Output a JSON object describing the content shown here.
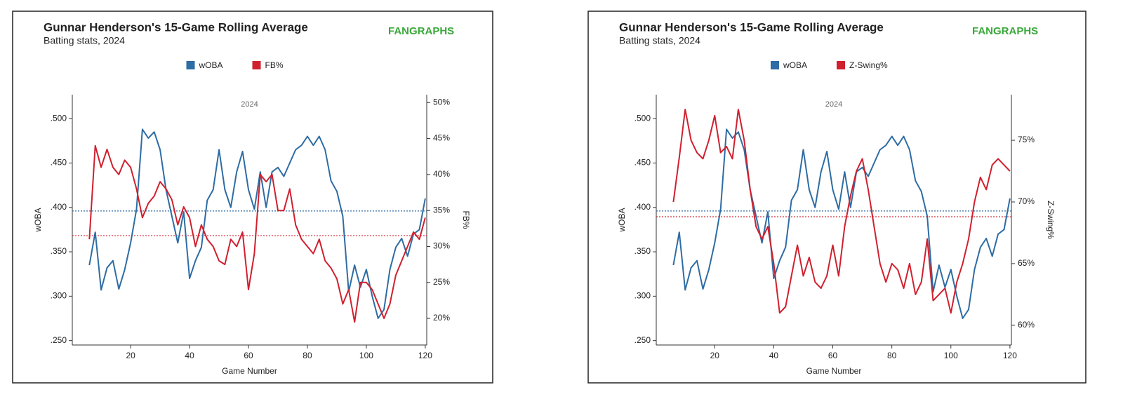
{
  "chart_data": [
    {
      "type": "line",
      "title": "Gunnar Henderson's 15-Game Rolling Average",
      "subtitle": "Batting stats, 2024",
      "logo": "FANGRAPHS",
      "annotation": "2024",
      "xlabel": "Game Number",
      "ylabel": "wOBA",
      "y2label": "FB%",
      "x": [
        6,
        8,
        10,
        12,
        14,
        16,
        18,
        20,
        22,
        24,
        26,
        28,
        30,
        32,
        34,
        36,
        38,
        40,
        42,
        44,
        46,
        48,
        50,
        52,
        54,
        56,
        58,
        60,
        62,
        64,
        66,
        68,
        70,
        72,
        74,
        76,
        78,
        80,
        82,
        84,
        86,
        88,
        90,
        92,
        94,
        96,
        98,
        100,
        102,
        104,
        106,
        108,
        110,
        112,
        114,
        116,
        118,
        120
      ],
      "xlim": [
        0.2,
        120.5
      ],
      "xticks": [
        20,
        40,
        60,
        80,
        100,
        120
      ],
      "ylim": [
        0.245,
        0.527
      ],
      "yticks": [
        {
          "value": 0.25,
          "label": ".250"
        },
        {
          "value": 0.3,
          "label": ".300"
        },
        {
          "value": 0.35,
          "label": ".350"
        },
        {
          "value": 0.4,
          "label": ".400"
        },
        {
          "value": 0.45,
          "label": ".450"
        },
        {
          "value": 0.5,
          "label": ".500"
        }
      ],
      "y2lim": [
        16.3,
        51.1
      ],
      "y2ticks": [
        {
          "value": 20,
          "label": "20%"
        },
        {
          "value": 25,
          "label": "25%"
        },
        {
          "value": 30,
          "label": "30%"
        },
        {
          "value": 35,
          "label": "35%"
        },
        {
          "value": 40,
          "label": "40%"
        },
        {
          "value": 45,
          "label": "45%"
        },
        {
          "value": 50,
          "label": "50%"
        }
      ],
      "series": [
        {
          "name": "wOBA",
          "color": "#2e6ca4",
          "axis": "y",
          "average": 0.396,
          "values": [
            0.335,
            0.372,
            0.307,
            0.332,
            0.34,
            0.308,
            0.33,
            0.36,
            0.398,
            0.488,
            0.478,
            0.485,
            0.465,
            0.42,
            0.39,
            0.36,
            0.395,
            0.32,
            0.34,
            0.355,
            0.408,
            0.42,
            0.465,
            0.42,
            0.4,
            0.44,
            0.463,
            0.42,
            0.398,
            0.44,
            0.4,
            0.44,
            0.445,
            0.435,
            0.45,
            0.465,
            0.47,
            0.48,
            0.47,
            0.48,
            0.465,
            0.43,
            0.418,
            0.39,
            0.305,
            0.335,
            0.31,
            0.33,
            0.3,
            0.275,
            0.285,
            0.33,
            0.355,
            0.365,
            0.345,
            0.37,
            0.375,
            0.41
          ]
        },
        {
          "name": "FB%",
          "color": "#d0202e",
          "axis": "y2",
          "average": 31.5,
          "values": [
            31,
            44,
            41,
            43.5,
            41,
            40,
            42,
            41,
            38,
            34,
            36,
            37,
            39,
            38,
            36.5,
            33,
            35.5,
            34,
            30,
            33,
            31,
            30,
            28,
            27.5,
            31,
            30,
            32,
            24,
            29,
            40,
            39,
            40,
            35,
            35,
            38,
            33,
            31,
            30,
            29,
            31,
            28,
            27,
            25.5,
            22,
            24,
            19.5,
            25,
            25,
            24,
            22,
            20,
            22,
            26,
            28,
            30,
            32,
            31,
            34
          ]
        }
      ]
    },
    {
      "type": "line",
      "title": "Gunnar Henderson's 15-Game Rolling Average",
      "subtitle": "Batting stats, 2024",
      "logo": "FANGRAPHS",
      "annotation": "2024",
      "xlabel": "Game Number",
      "ylabel": "wOBA",
      "y2label": "Z-Swing%",
      "x": [
        6,
        8,
        10,
        12,
        14,
        16,
        18,
        20,
        22,
        24,
        26,
        28,
        30,
        32,
        34,
        36,
        38,
        40,
        42,
        44,
        46,
        48,
        50,
        52,
        54,
        56,
        58,
        60,
        62,
        64,
        66,
        68,
        70,
        72,
        74,
        76,
        78,
        80,
        82,
        84,
        86,
        88,
        90,
        92,
        94,
        96,
        98,
        100,
        102,
        104,
        106,
        108,
        110,
        112,
        114,
        116,
        118,
        120
      ],
      "xlim": [
        0.2,
        120.5
      ],
      "xticks": [
        20,
        40,
        60,
        80,
        100,
        120
      ],
      "ylim": [
        0.245,
        0.527
      ],
      "yticks": [
        {
          "value": 0.25,
          "label": ".250"
        },
        {
          "value": 0.3,
          "label": ".300"
        },
        {
          "value": 0.35,
          "label": ".350"
        },
        {
          "value": 0.4,
          "label": ".400"
        },
        {
          "value": 0.45,
          "label": ".450"
        },
        {
          "value": 0.5,
          "label": ".500"
        }
      ],
      "y2lim": [
        58.4,
        78.7
      ],
      "y2ticks": [
        {
          "value": 60,
          "label": "60%"
        },
        {
          "value": 65,
          "label": "65%"
        },
        {
          "value": 70,
          "label": "70%"
        },
        {
          "value": 75,
          "label": "75%"
        }
      ],
      "series": [
        {
          "name": "wOBA",
          "color": "#2e6ca4",
          "axis": "y",
          "average": 0.396,
          "values": [
            0.335,
            0.372,
            0.307,
            0.332,
            0.34,
            0.308,
            0.33,
            0.36,
            0.398,
            0.488,
            0.478,
            0.485,
            0.465,
            0.42,
            0.39,
            0.36,
            0.395,
            0.32,
            0.34,
            0.355,
            0.408,
            0.42,
            0.465,
            0.42,
            0.4,
            0.44,
            0.463,
            0.42,
            0.398,
            0.44,
            0.4,
            0.44,
            0.445,
            0.435,
            0.45,
            0.465,
            0.47,
            0.48,
            0.47,
            0.48,
            0.465,
            0.43,
            0.418,
            0.39,
            0.305,
            0.335,
            0.31,
            0.33,
            0.3,
            0.275,
            0.285,
            0.33,
            0.355,
            0.365,
            0.345,
            0.37,
            0.375,
            0.41
          ]
        },
        {
          "name": "Z-Swing%",
          "color": "#d0202e",
          "axis": "y2",
          "average": 68.8,
          "values": [
            70,
            73.6,
            77.5,
            75,
            74,
            73.5,
            75,
            77,
            74,
            74.5,
            73.5,
            77.5,
            75,
            71,
            68,
            67,
            68,
            65,
            61,
            61.5,
            64,
            66.5,
            64,
            65.5,
            63.5,
            63,
            64,
            66.5,
            64,
            68,
            70.5,
            72.5,
            73.5,
            71,
            68,
            65,
            63.5,
            65,
            64.5,
            63,
            65,
            62.5,
            63.5,
            67,
            62,
            62.5,
            63,
            61,
            63.5,
            65,
            67,
            70,
            72,
            71,
            73,
            73.5,
            73,
            72.5
          ]
        }
      ]
    }
  ]
}
